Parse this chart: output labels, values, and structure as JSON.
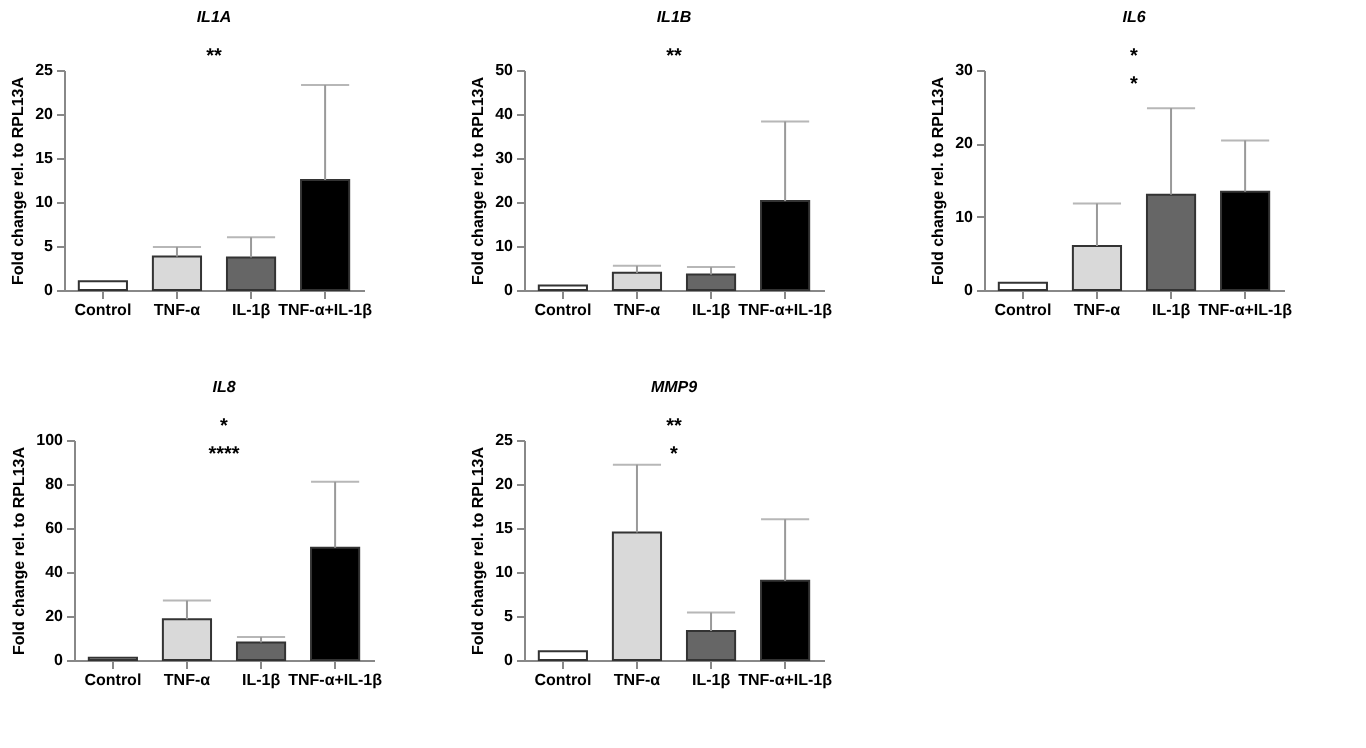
{
  "chart_data": [
    {
      "type": "bar",
      "title": "IL1A",
      "ylabel": "Fold change rel. to RPL13A",
      "categories": [
        "Control",
        "TNF-α",
        "IL-1β",
        "TNF-α+IL-1β"
      ],
      "values": [
        1,
        3.8,
        3.7,
        12.5
      ],
      "colors": [
        "#ffffff",
        "#d9d9d9",
        "#666666",
        "#000000"
      ],
      "errors": [
        null,
        [
          3.8,
          4.9
        ],
        [
          3.7,
          6
        ],
        [
          12.5,
          23.3
        ]
      ],
      "ylim": [
        0,
        25
      ],
      "yticks": [
        0,
        5,
        10,
        15,
        20,
        25
      ],
      "grid": false,
      "annotations": [
        "**"
      ]
    },
    {
      "type": "bar",
      "title": "IL1B",
      "ylabel": "Fold change rel. to RPL13A",
      "categories": [
        "Control",
        "TNF-α",
        "IL-1β",
        "TNF-α+IL-1β"
      ],
      "values": [
        1,
        3.9,
        3.5,
        20.2
      ],
      "colors": [
        "#ffffff",
        "#d9d9d9",
        "#666666",
        "#000000"
      ],
      "errors": [
        null,
        [
          3.9,
          5.5
        ],
        [
          3.5,
          5.2
        ],
        [
          20.2,
          38.3
        ]
      ],
      "ylim": [
        0,
        50
      ],
      "yticks": [
        0,
        10,
        20,
        30,
        40,
        50
      ],
      "grid": false,
      "annotations": [
        "**"
      ]
    },
    {
      "type": "bar",
      "title": "IL6",
      "ylabel": "Fold change rel. to RPL13A",
      "categories": [
        "Control",
        "TNF-α",
        "IL-1β",
        "TNF-α+IL-1β"
      ],
      "values": [
        1,
        6,
        13,
        13.4
      ],
      "colors": [
        "#ffffff",
        "#d9d9d9",
        "#666666",
        "#000000"
      ],
      "errors": [
        null,
        [
          6,
          11.8
        ],
        [
          13,
          24.8
        ],
        [
          13.4,
          20.4
        ]
      ],
      "ylim": [
        0,
        30
      ],
      "yticks": [
        0,
        10,
        20,
        30
      ],
      "grid": false,
      "annotations": [
        "*",
        "*"
      ]
    },
    {
      "type": "bar",
      "title": "IL8",
      "ylabel": "Fold change rel. to RPL13A",
      "categories": [
        "Control",
        "TNF-α",
        "IL-1β",
        "TNF-α+IL-1β"
      ],
      "values": [
        1,
        18.5,
        8,
        51
      ],
      "colors": [
        "#ffffff",
        "#d9d9d9",
        "#666666",
        "#000000"
      ],
      "errors": [
        null,
        [
          18.5,
          27
        ],
        [
          8,
          10.5
        ],
        [
          51,
          81
        ]
      ],
      "ylim": [
        0,
        100
      ],
      "yticks": [
        0,
        20,
        40,
        60,
        80,
        100
      ],
      "grid": false,
      "annotations": [
        "*",
        "****"
      ]
    },
    {
      "type": "bar",
      "title": "MMP9",
      "ylabel": "Fold change rel. to RPL13A",
      "categories": [
        "Control",
        "TNF-α",
        "IL-1β",
        "TNF-α+IL-1β"
      ],
      "values": [
        1,
        14.5,
        3.3,
        9
      ],
      "colors": [
        "#ffffff",
        "#d9d9d9",
        "#666666",
        "#000000"
      ],
      "errors": [
        null,
        [
          14.5,
          22.2
        ],
        [
          3.3,
          5.4
        ],
        [
          9,
          16
        ]
      ],
      "ylim": [
        0,
        25
      ],
      "yticks": [
        0,
        5,
        10,
        15,
        20,
        25
      ],
      "grid": false,
      "annotations": [
        "**",
        "*"
      ]
    }
  ]
}
